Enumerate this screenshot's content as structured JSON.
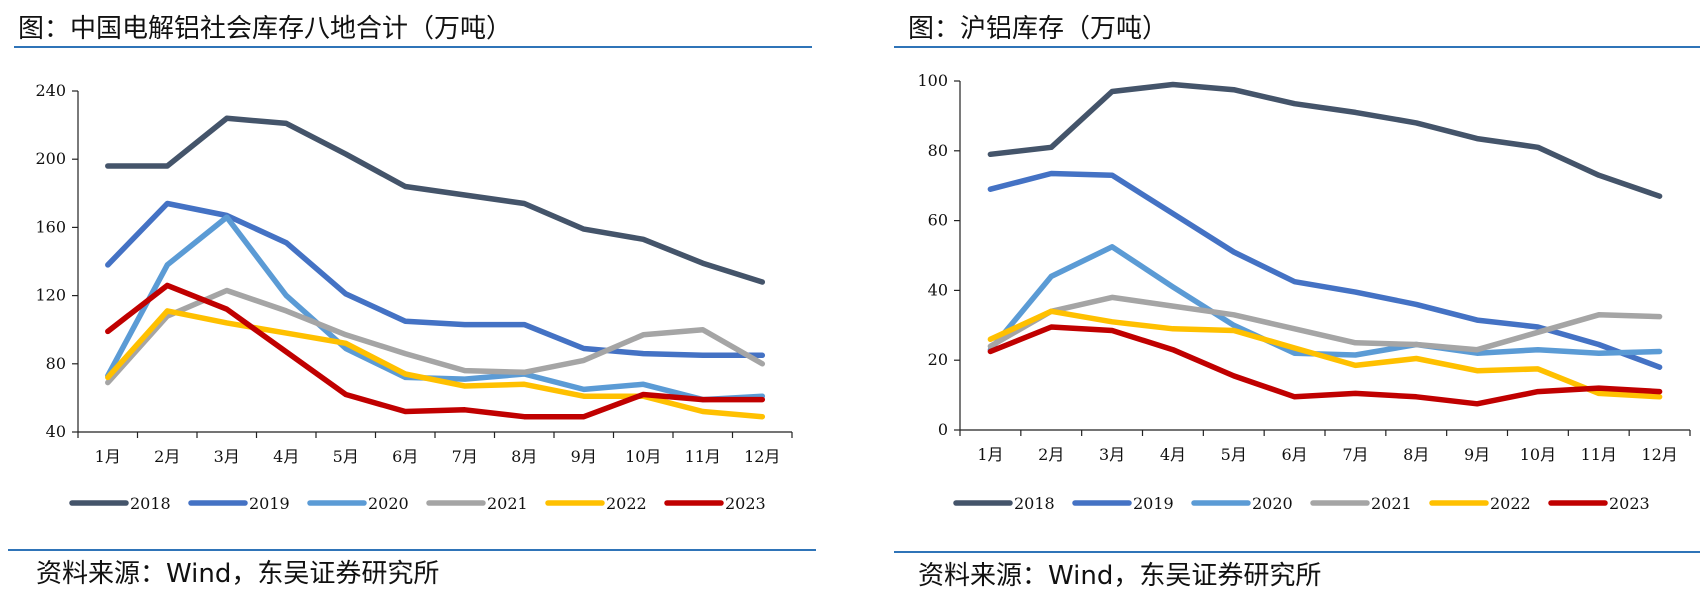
{
  "chart_data": [
    {
      "type": "line",
      "title": "图：中国电解铝社会库存八地合计（万吨）",
      "categories": [
        "1月",
        "2月",
        "3月",
        "4月",
        "5月",
        "6月",
        "7月",
        "8月",
        "9月",
        "10月",
        "11月",
        "12月"
      ],
      "ylim": [
        40,
        240
      ],
      "yticks": [
        "40",
        "80",
        "120",
        "160",
        "200",
        "240"
      ],
      "series": [
        {
          "name": "2018",
          "color": "#44546a",
          "values": [
            196,
            196,
            224,
            221,
            203,
            184,
            179,
            174,
            159,
            153,
            139,
            128
          ]
        },
        {
          "name": "2019",
          "color": "#4472c4",
          "values": [
            138,
            174,
            167,
            151,
            121,
            105,
            103,
            103,
            89,
            86,
            85,
            85
          ]
        },
        {
          "name": "2020",
          "color": "#5b9bd5",
          "values": [
            73,
            138,
            166,
            120,
            89,
            72,
            71,
            74,
            65,
            68,
            59,
            61
          ]
        },
        {
          "name": "2021",
          "color": "#a5a5a5",
          "values": [
            69,
            108,
            123,
            111,
            97,
            86,
            76,
            75,
            82,
            97,
            100,
            80
          ]
        },
        {
          "name": "2022",
          "color": "#ffc000",
          "values": [
            72,
            111,
            104,
            98,
            92,
            74,
            67,
            68,
            61,
            61,
            52,
            49
          ]
        },
        {
          "name": "2023",
          "color": "#c00000",
          "values": [
            99,
            126,
            112,
            87,
            62,
            52,
            53,
            49,
            49,
            62,
            59,
            59
          ]
        }
      ],
      "source": "资料来源：Wind，东吴证券研究所"
    },
    {
      "type": "line",
      "title": "图：沪铝库存（万吨）",
      "categories": [
        "1月",
        "2月",
        "3月",
        "4月",
        "5月",
        "6月",
        "7月",
        "8月",
        "9月",
        "10月",
        "11月",
        "12月"
      ],
      "ylim": [
        0,
        100
      ],
      "yticks": [
        "0",
        "20",
        "40",
        "60",
        "80",
        "100"
      ],
      "series": [
        {
          "name": "2018",
          "color": "#44546a",
          "values": [
            79,
            81,
            97,
            99,
            97.5,
            93.5,
            91,
            88,
            83.5,
            81,
            73,
            67
          ]
        },
        {
          "name": "2019",
          "color": "#4472c4",
          "values": [
            69,
            73.5,
            73,
            62,
            51,
            42.5,
            39.5,
            36,
            31.5,
            29.5,
            24.5,
            18
          ]
        },
        {
          "name": "2020",
          "color": "#5b9bd5",
          "values": [
            23,
            44,
            52.5,
            41,
            30,
            22,
            21.5,
            24.5,
            22,
            23,
            22,
            22.5
          ]
        },
        {
          "name": "2021",
          "color": "#a5a5a5",
          "values": [
            24,
            34,
            38,
            35.5,
            33,
            29,
            25,
            24.5,
            23,
            28,
            33,
            32.5
          ]
        },
        {
          "name": "2022",
          "color": "#ffc000",
          "values": [
            26,
            34,
            31,
            29,
            28.5,
            23.5,
            18.5,
            20.5,
            17,
            17.5,
            10.5,
            9.5
          ]
        },
        {
          "name": "2023",
          "color": "#c00000",
          "values": [
            22.5,
            29.5,
            28.5,
            23,
            15.5,
            9.5,
            10.5,
            9.5,
            7.5,
            11,
            12,
            11
          ]
        }
      ],
      "source": "资料来源：Wind，东吴证券研究所"
    }
  ]
}
